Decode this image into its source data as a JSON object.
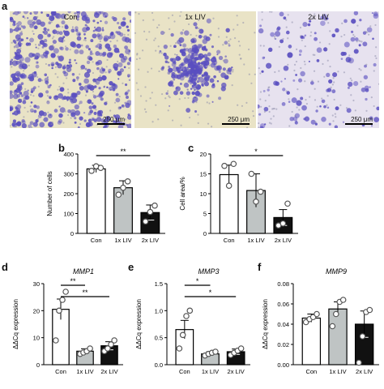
{
  "panel_letters": {
    "a": "a",
    "b": "b",
    "c": "c",
    "d": "d",
    "e": "e",
    "f": "f"
  },
  "micrographs": [
    {
      "title": "Con",
      "scale": "250 μm",
      "density": 0.95
    },
    {
      "title": "1x LIV",
      "scale": "250 μm",
      "density": 0.55
    },
    {
      "title": "2x LIV",
      "scale": "250 μm",
      "density": 0.25
    }
  ],
  "colors": {
    "con": "#ffffff",
    "liv1": "#bfc4c4",
    "liv2": "#111111",
    "stain": "#5a4fc0",
    "bg1": "#e9e3c6",
    "bg3": "#e7e2ef"
  },
  "chart_data": [
    {
      "id": "b",
      "type": "bar",
      "ylabel": "Number of cells",
      "categories": [
        "Con",
        "1x LIV",
        "2x LIV"
      ],
      "values": [
        325,
        230,
        105
      ],
      "errors": [
        18,
        35,
        38
      ],
      "points": [
        [
          315,
          338,
          330
        ],
        [
          195,
          230,
          262
        ],
        [
          60,
          108,
          140
        ]
      ],
      "ylim": [
        0,
        400
      ],
      "yticks": [
        "0",
        "100",
        "200",
        "300",
        "400"
      ],
      "ytick_vals": [
        0,
        100,
        200,
        300,
        400
      ],
      "sig": [
        {
          "from": 0,
          "to": 2,
          "label": "**"
        }
      ]
    },
    {
      "id": "c",
      "type": "bar",
      "ylabel": "Cell area/%",
      "categories": [
        "Con",
        "1x LIV",
        "2x LIV"
      ],
      "values": [
        14.8,
        10.8,
        4.0
      ],
      "errors": [
        2.4,
        4.2,
        2.0
      ],
      "points": [
        [
          17,
          12,
          17.5
        ],
        [
          15,
          8,
          10.5
        ],
        [
          2,
          2.5,
          7.5
        ]
      ],
      "ylim": [
        0,
        20
      ],
      "yticks": [
        "0",
        "5",
        "10",
        "15",
        "20"
      ],
      "ytick_vals": [
        0,
        5,
        10,
        15,
        20
      ],
      "sig": [
        {
          "from": 0,
          "to": 2,
          "label": "*"
        }
      ]
    },
    {
      "id": "d",
      "type": "bar",
      "title": "MMP1",
      "ylabel": "ΔΔCq expression",
      "categories": [
        "Con",
        "1x LIV",
        "2x LIV"
      ],
      "values": [
        20.5,
        5.0,
        7.0
      ],
      "errors": [
        3.8,
        0.9,
        1.5
      ],
      "points": [
        [
          9,
          20,
          24,
          27
        ],
        [
          4,
          4.5,
          5,
          6
        ],
        [
          5,
          6,
          7.5,
          9
        ]
      ],
      "ylim": [
        0,
        30
      ],
      "yticks": [
        "0",
        "10",
        "20",
        "30"
      ],
      "ytick_vals": [
        0,
        10,
        20,
        30
      ],
      "sig": [
        {
          "from": 0,
          "to": 1,
          "label": "**"
        },
        {
          "from": 0,
          "to": 2,
          "label": "**"
        }
      ]
    },
    {
      "id": "e",
      "type": "bar",
      "title": "MMP3",
      "ylabel": "ΔΔCq expression",
      "categories": [
        "Con",
        "1x LIV",
        "2x LIV"
      ],
      "values": [
        0.65,
        0.2,
        0.24
      ],
      "errors": [
        0.17,
        0.04,
        0.05
      ],
      "points": [
        [
          0.3,
          0.55,
          0.9,
          1.0
        ],
        [
          0.17,
          0.2,
          0.22,
          0.24
        ],
        [
          0.18,
          0.22,
          0.26,
          0.3
        ]
      ],
      "ylim": [
        0,
        1.5
      ],
      "yticks": [
        "0.0",
        "0.5",
        "1.0",
        "1.5"
      ],
      "ytick_vals": [
        0,
        0.5,
        1.0,
        1.5
      ],
      "sig": [
        {
          "from": 0,
          "to": 1,
          "label": "*"
        },
        {
          "from": 0,
          "to": 2,
          "label": "*"
        }
      ]
    },
    {
      "id": "f",
      "type": "bar",
      "title": "MMP9",
      "ylabel": "ΔΔCq expression",
      "categories": [
        "Con",
        "1x LIV",
        "2x LIV"
      ],
      "values": [
        0.046,
        0.055,
        0.04
      ],
      "errors": [
        0.004,
        0.007,
        0.013
      ],
      "points": [
        [
          0.042,
          0.045,
          0.047,
          0.05
        ],
        [
          0.038,
          0.05,
          0.062,
          0.064
        ],
        [
          0.002,
          0.028,
          0.052,
          0.054
        ]
      ],
      "ylim": [
        0,
        0.08
      ],
      "yticks": [
        "0.00",
        "0.02",
        "0.04",
        "0.06",
        "0.08"
      ],
      "ytick_vals": [
        0,
        0.02,
        0.04,
        0.06,
        0.08
      ],
      "sig": []
    }
  ]
}
